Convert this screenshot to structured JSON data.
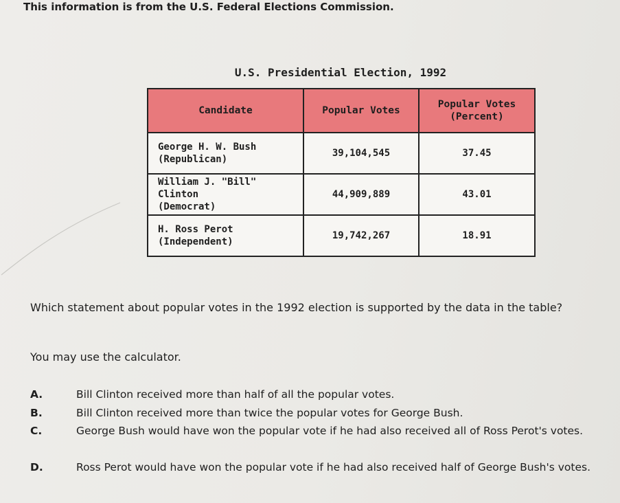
{
  "source_note": "This information is from the U.S. Federal Elections Commission.",
  "table": {
    "title": "U.S. Presidential Election, 1992",
    "headers": [
      "Candidate",
      "Popular Votes",
      "Popular Votes (Percent)"
    ],
    "rows": [
      {
        "candidate_line1": "George H. W. Bush",
        "candidate_line2": "(Republican)",
        "votes": "39,104,545",
        "percent": "37.45"
      },
      {
        "candidate_line1": "William J. \"Bill\" Clinton",
        "candidate_line2": "(Democrat)",
        "votes": "44,909,889",
        "percent": "43.01"
      },
      {
        "candidate_line1": "H. Ross Perot",
        "candidate_line2": "(Independent)",
        "votes": "19,742,267",
        "percent": "18.91"
      }
    ]
  },
  "chart_data": {
    "type": "table",
    "title": "U.S. Presidential Election, 1992",
    "columns": [
      "Candidate",
      "Popular Votes",
      "Popular Votes (Percent)"
    ],
    "rows": [
      [
        "George H. W. Bush (Republican)",
        39104545,
        37.45
      ],
      [
        "William J. \"Bill\" Clinton (Democrat)",
        44909889,
        43.01
      ],
      [
        "H. Ross Perot (Independent)",
        19742267,
        18.91
      ]
    ]
  },
  "question": "Which statement about popular votes in the 1992 election is supported by the data in the table?",
  "calculator_note": "You may use the calculator.",
  "choices": [
    {
      "letter": "A.",
      "text": "Bill Clinton received more than half of all the popular votes."
    },
    {
      "letter": "B.",
      "text": "Bill Clinton received more than twice the popular votes for George Bush."
    },
    {
      "letter": "C.",
      "text": "George Bush would have won the popular vote if he had also received all of Ross Perot's votes."
    },
    {
      "letter": "D.",
      "text": "Ross Perot would have won the popular vote if he had also received half of George Bush's votes."
    }
  ]
}
